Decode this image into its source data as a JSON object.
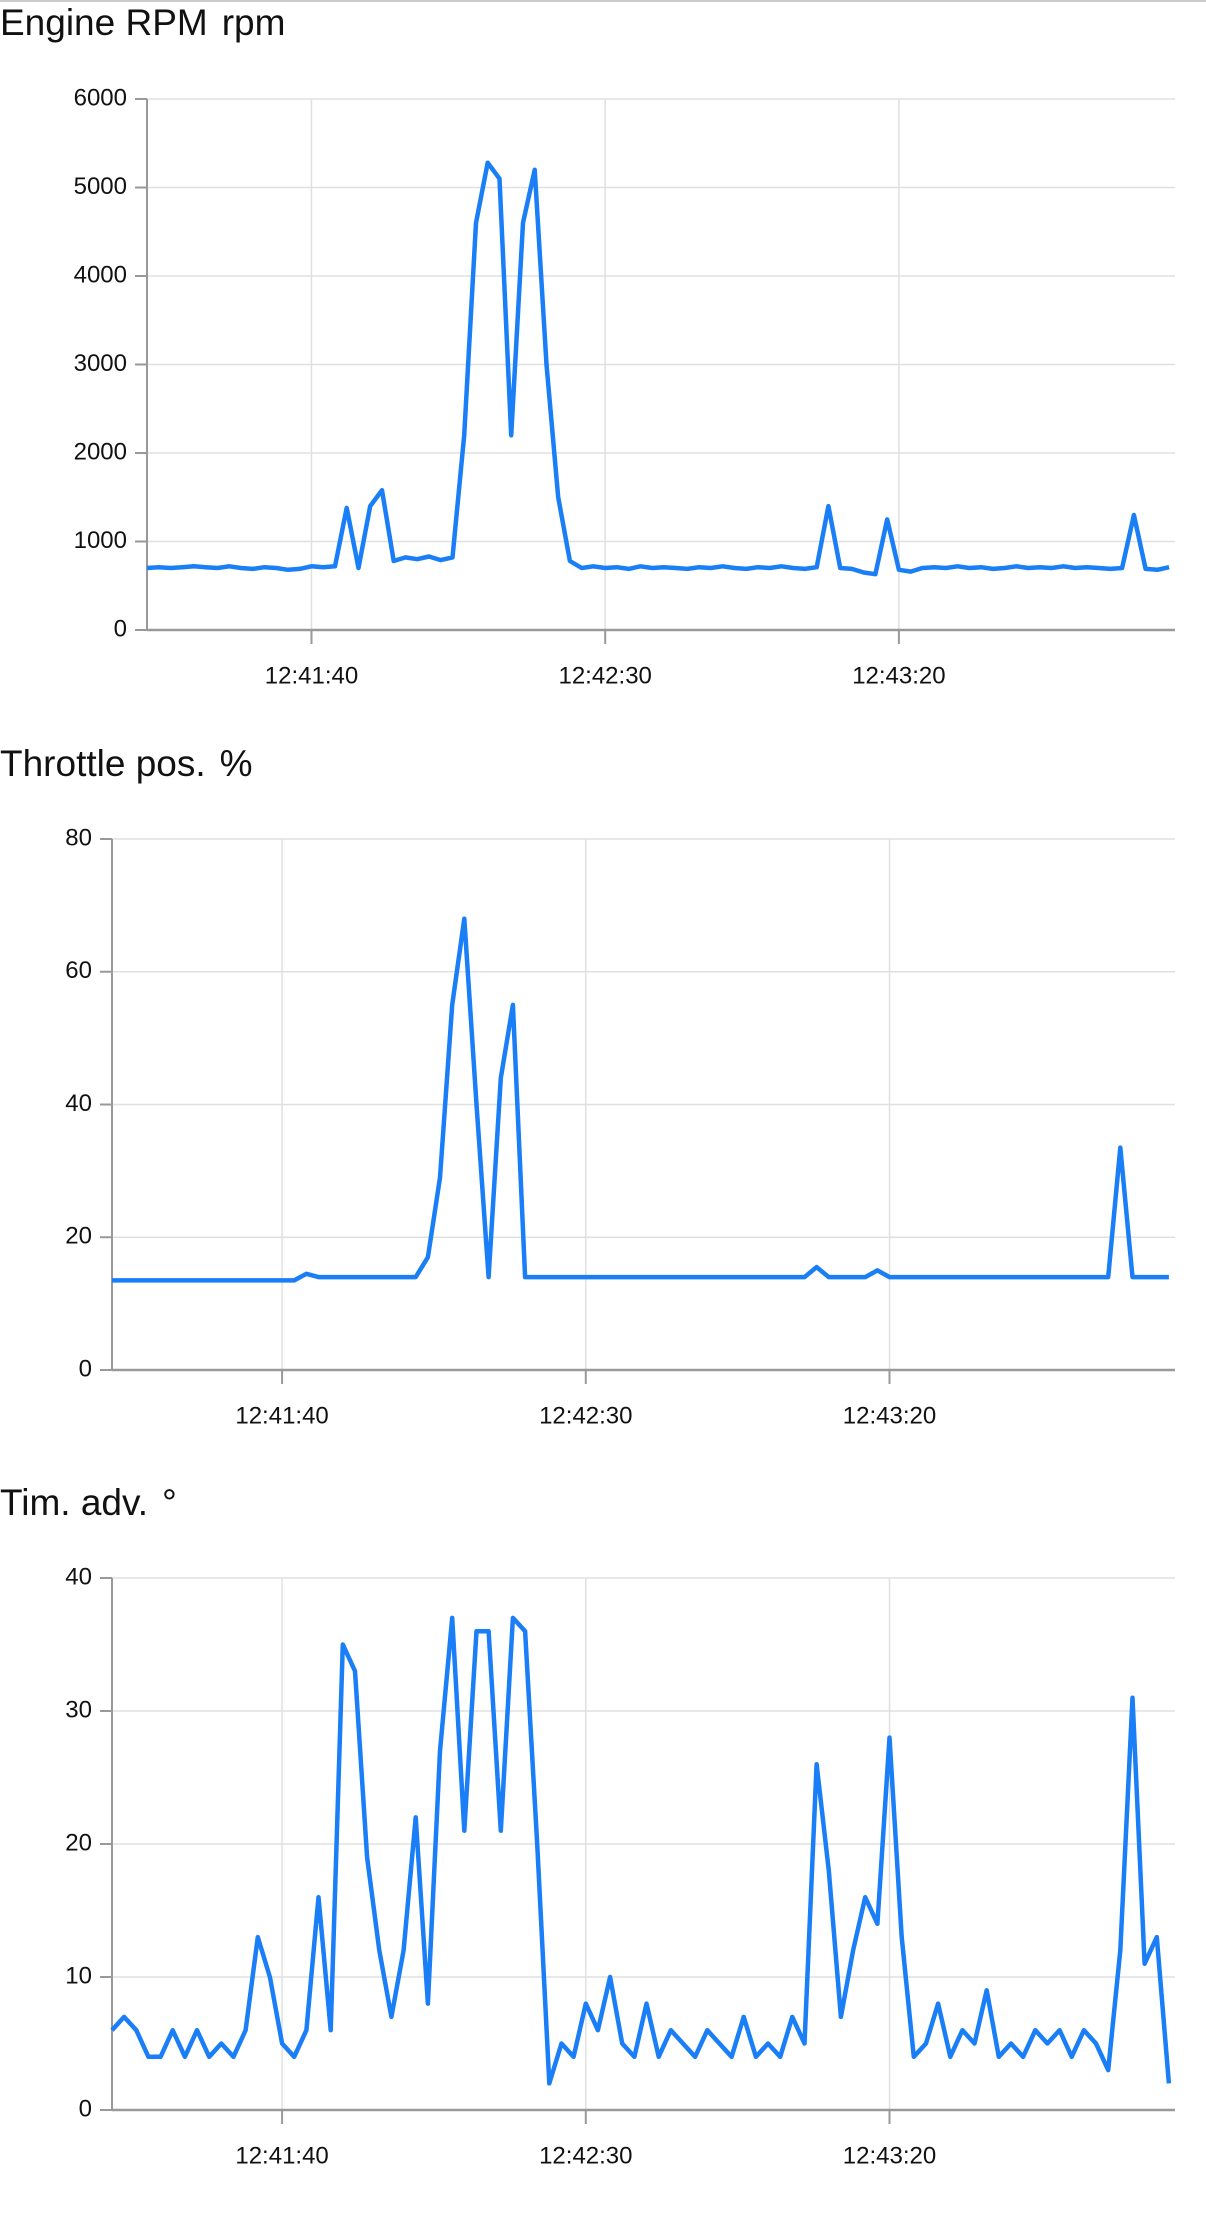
{
  "chart_data": [
    {
      "type": "line",
      "title": "Engine RPM",
      "unit": "rpm",
      "color": "#1a7ef7",
      "grid": true,
      "x": [
        "12:41:12",
        "12:41:14",
        "12:41:16",
        "12:41:18",
        "12:41:20",
        "12:41:22",
        "12:41:24",
        "12:41:26",
        "12:41:28",
        "12:41:30",
        "12:41:32",
        "12:41:34",
        "12:41:36",
        "12:41:38",
        "12:41:40",
        "12:41:42",
        "12:41:44",
        "12:41:46",
        "12:41:48",
        "12:41:50",
        "12:41:52",
        "12:41:54",
        "12:41:56",
        "12:41:58",
        "12:42:00",
        "12:42:02",
        "12:42:04",
        "12:42:06",
        "12:42:08",
        "12:42:10",
        "12:42:12",
        "12:42:14",
        "12:42:16",
        "12:42:18",
        "12:42:20",
        "12:42:22",
        "12:42:24",
        "12:42:26",
        "12:42:28",
        "12:42:30",
        "12:42:32",
        "12:42:34",
        "12:42:36",
        "12:42:38",
        "12:42:40",
        "12:42:42",
        "12:42:44",
        "12:42:46",
        "12:42:48",
        "12:42:50",
        "12:42:52",
        "12:42:54",
        "12:42:56",
        "12:42:58",
        "12:43:00",
        "12:43:02",
        "12:43:04",
        "12:43:06",
        "12:43:08",
        "12:43:10",
        "12:43:12",
        "12:43:14",
        "12:43:16",
        "12:43:18",
        "12:43:20",
        "12:43:22",
        "12:43:24",
        "12:43:26",
        "12:43:28",
        "12:43:30",
        "12:43:32",
        "12:43:34",
        "12:43:36",
        "12:43:38",
        "12:43:40",
        "12:43:42",
        "12:43:44",
        "12:43:46",
        "12:43:48",
        "12:43:50",
        "12:43:52",
        "12:43:54",
        "12:43:56",
        "12:43:58",
        "12:44:00",
        "12:44:02",
        "12:44:04",
        "12:44:06"
      ],
      "values": [
        700,
        710,
        700,
        710,
        720,
        710,
        700,
        720,
        700,
        690,
        710,
        700,
        680,
        690,
        720,
        710,
        720,
        1380,
        700,
        1400,
        1580,
        780,
        820,
        800,
        830,
        790,
        820,
        2200,
        4600,
        5280,
        5100,
        2200,
        4600,
        5200,
        3000,
        1500,
        780,
        700,
        720,
        700,
        710,
        690,
        720,
        700,
        710,
        700,
        690,
        710,
        700,
        720,
        700,
        690,
        710,
        700,
        720,
        700,
        690,
        710,
        1400,
        700,
        690,
        650,
        630,
        1250,
        680,
        660,
        700,
        710,
        700,
        720,
        700,
        710,
        690,
        700,
        720,
        700,
        710,
        700,
        720,
        700,
        710,
        700,
        690,
        700,
        1300,
        690,
        680,
        710
      ],
      "xlim": [
        "12:41:12",
        "12:44:07"
      ],
      "xticks": [
        "12:41:40",
        "12:42:30",
        "12:43:20"
      ],
      "ylim": [
        0,
        6000
      ],
      "yticks": [
        0,
        1000,
        2000,
        3000,
        4000,
        5000,
        6000
      ]
    },
    {
      "type": "line",
      "title": "Throttle pos.",
      "unit": "%",
      "color": "#1a7ef7",
      "grid": true,
      "x": [
        "12:41:12",
        "12:41:14",
        "12:41:16",
        "12:41:18",
        "12:41:20",
        "12:41:22",
        "12:41:24",
        "12:41:26",
        "12:41:28",
        "12:41:30",
        "12:41:32",
        "12:41:34",
        "12:41:36",
        "12:41:38",
        "12:41:40",
        "12:41:42",
        "12:41:44",
        "12:41:46",
        "12:41:48",
        "12:41:50",
        "12:41:52",
        "12:41:54",
        "12:41:56",
        "12:41:58",
        "12:42:00",
        "12:42:02",
        "12:42:04",
        "12:42:06",
        "12:42:08",
        "12:42:10",
        "12:42:12",
        "12:42:14",
        "12:42:16",
        "12:42:18",
        "12:42:20",
        "12:42:22",
        "12:42:24",
        "12:42:26",
        "12:42:28",
        "12:42:30",
        "12:42:32",
        "12:42:34",
        "12:42:36",
        "12:42:38",
        "12:42:40",
        "12:42:42",
        "12:42:44",
        "12:42:46",
        "12:42:48",
        "12:42:50",
        "12:42:52",
        "12:42:54",
        "12:42:56",
        "12:42:58",
        "12:43:00",
        "12:43:02",
        "12:43:04",
        "12:43:06",
        "12:43:08",
        "12:43:10",
        "12:43:12",
        "12:43:14",
        "12:43:16",
        "12:43:18",
        "12:43:20",
        "12:43:22",
        "12:43:24",
        "12:43:26",
        "12:43:28",
        "12:43:30",
        "12:43:32",
        "12:43:34",
        "12:43:36",
        "12:43:38",
        "12:43:40",
        "12:43:42",
        "12:43:44",
        "12:43:46",
        "12:43:48",
        "12:43:50",
        "12:43:52",
        "12:43:54",
        "12:43:56",
        "12:43:58",
        "12:44:00",
        "12:44:02",
        "12:44:04",
        "12:44:06"
      ],
      "values": [
        13.5,
        13.5,
        13.5,
        13.5,
        13.5,
        13.5,
        13.5,
        13.5,
        13.5,
        13.5,
        13.5,
        13.5,
        13.5,
        13.5,
        13.5,
        13.5,
        14.5,
        14,
        14,
        14,
        14,
        14,
        14,
        14,
        14,
        14,
        17,
        29,
        55,
        68,
        40,
        14,
        44,
        55,
        14,
        14,
        14,
        14,
        14,
        14,
        14,
        14,
        14,
        14,
        14,
        14,
        14,
        14,
        14,
        14,
        14,
        14,
        14,
        14,
        14,
        14,
        14,
        14,
        15.5,
        14,
        14,
        14,
        14,
        15,
        14,
        14,
        14,
        14,
        14,
        14,
        14,
        14,
        14,
        14,
        14,
        14,
        14,
        14,
        14,
        14,
        14,
        14,
        14,
        33.5,
        14,
        14,
        14,
        14
      ],
      "xlim": [
        "12:41:12",
        "12:44:07"
      ],
      "xticks": [
        "12:41:40",
        "12:42:30",
        "12:43:20"
      ],
      "ylim": [
        0,
        80
      ],
      "yticks": [
        0,
        20,
        40,
        60,
        80
      ]
    },
    {
      "type": "line",
      "title": "Tim. adv.",
      "unit": "°",
      "color": "#1a7ef7",
      "grid": true,
      "x": [
        "12:41:12",
        "12:41:14",
        "12:41:16",
        "12:41:18",
        "12:41:20",
        "12:41:22",
        "12:41:24",
        "12:41:26",
        "12:41:28",
        "12:41:30",
        "12:41:32",
        "12:41:34",
        "12:41:36",
        "12:41:38",
        "12:41:40",
        "12:41:42",
        "12:41:44",
        "12:41:46",
        "12:41:48",
        "12:41:50",
        "12:41:52",
        "12:41:54",
        "12:41:56",
        "12:41:58",
        "12:42:00",
        "12:42:02",
        "12:42:04",
        "12:42:06",
        "12:42:08",
        "12:42:10",
        "12:42:12",
        "12:42:14",
        "12:42:16",
        "12:42:18",
        "12:42:20",
        "12:42:22",
        "12:42:24",
        "12:42:26",
        "12:42:28",
        "12:42:30",
        "12:42:32",
        "12:42:34",
        "12:42:36",
        "12:42:38",
        "12:42:40",
        "12:42:42",
        "12:42:44",
        "12:42:46",
        "12:42:48",
        "12:42:50",
        "12:42:52",
        "12:42:54",
        "12:42:56",
        "12:42:58",
        "12:43:00",
        "12:43:02",
        "12:43:04",
        "12:43:06",
        "12:43:08",
        "12:43:10",
        "12:43:12",
        "12:43:14",
        "12:43:16",
        "12:43:18",
        "12:43:20",
        "12:43:22",
        "12:43:24",
        "12:43:26",
        "12:43:28",
        "12:43:30",
        "12:43:32",
        "12:43:34",
        "12:43:36",
        "12:43:38",
        "12:43:40",
        "12:43:42",
        "12:43:44",
        "12:43:46",
        "12:43:48",
        "12:43:50",
        "12:43:52",
        "12:43:54",
        "12:43:56",
        "12:43:58",
        "12:44:00",
        "12:44:02",
        "12:44:04",
        "12:44:06"
      ],
      "values": [
        6,
        7,
        6,
        4,
        4,
        6,
        4,
        6,
        4,
        5,
        4,
        6,
        13,
        10,
        5,
        4,
        6,
        16,
        6,
        35,
        33,
        19,
        12,
        7,
        12,
        22,
        8,
        27,
        37,
        21,
        36,
        36,
        21,
        37,
        36,
        20,
        2,
        5,
        4,
        8,
        6,
        10,
        5,
        4,
        8,
        4,
        6,
        5,
        4,
        6,
        5,
        4,
        7,
        4,
        5,
        4,
        7,
        5,
        26,
        18,
        7,
        12,
        16,
        14,
        28,
        13,
        4,
        5,
        8,
        4,
        6,
        5,
        9,
        4,
        5,
        4,
        6,
        5,
        6,
        4,
        6,
        5,
        3,
        12,
        31,
        11,
        13,
        2
      ],
      "xlim": [
        "12:41:12",
        "12:44:07"
      ],
      "xticks": [
        "12:41:40",
        "12:42:30",
        "12:43:20"
      ],
      "ylim": [
        0,
        40
      ],
      "yticks": [
        0,
        10,
        20,
        30,
        40
      ]
    }
  ]
}
